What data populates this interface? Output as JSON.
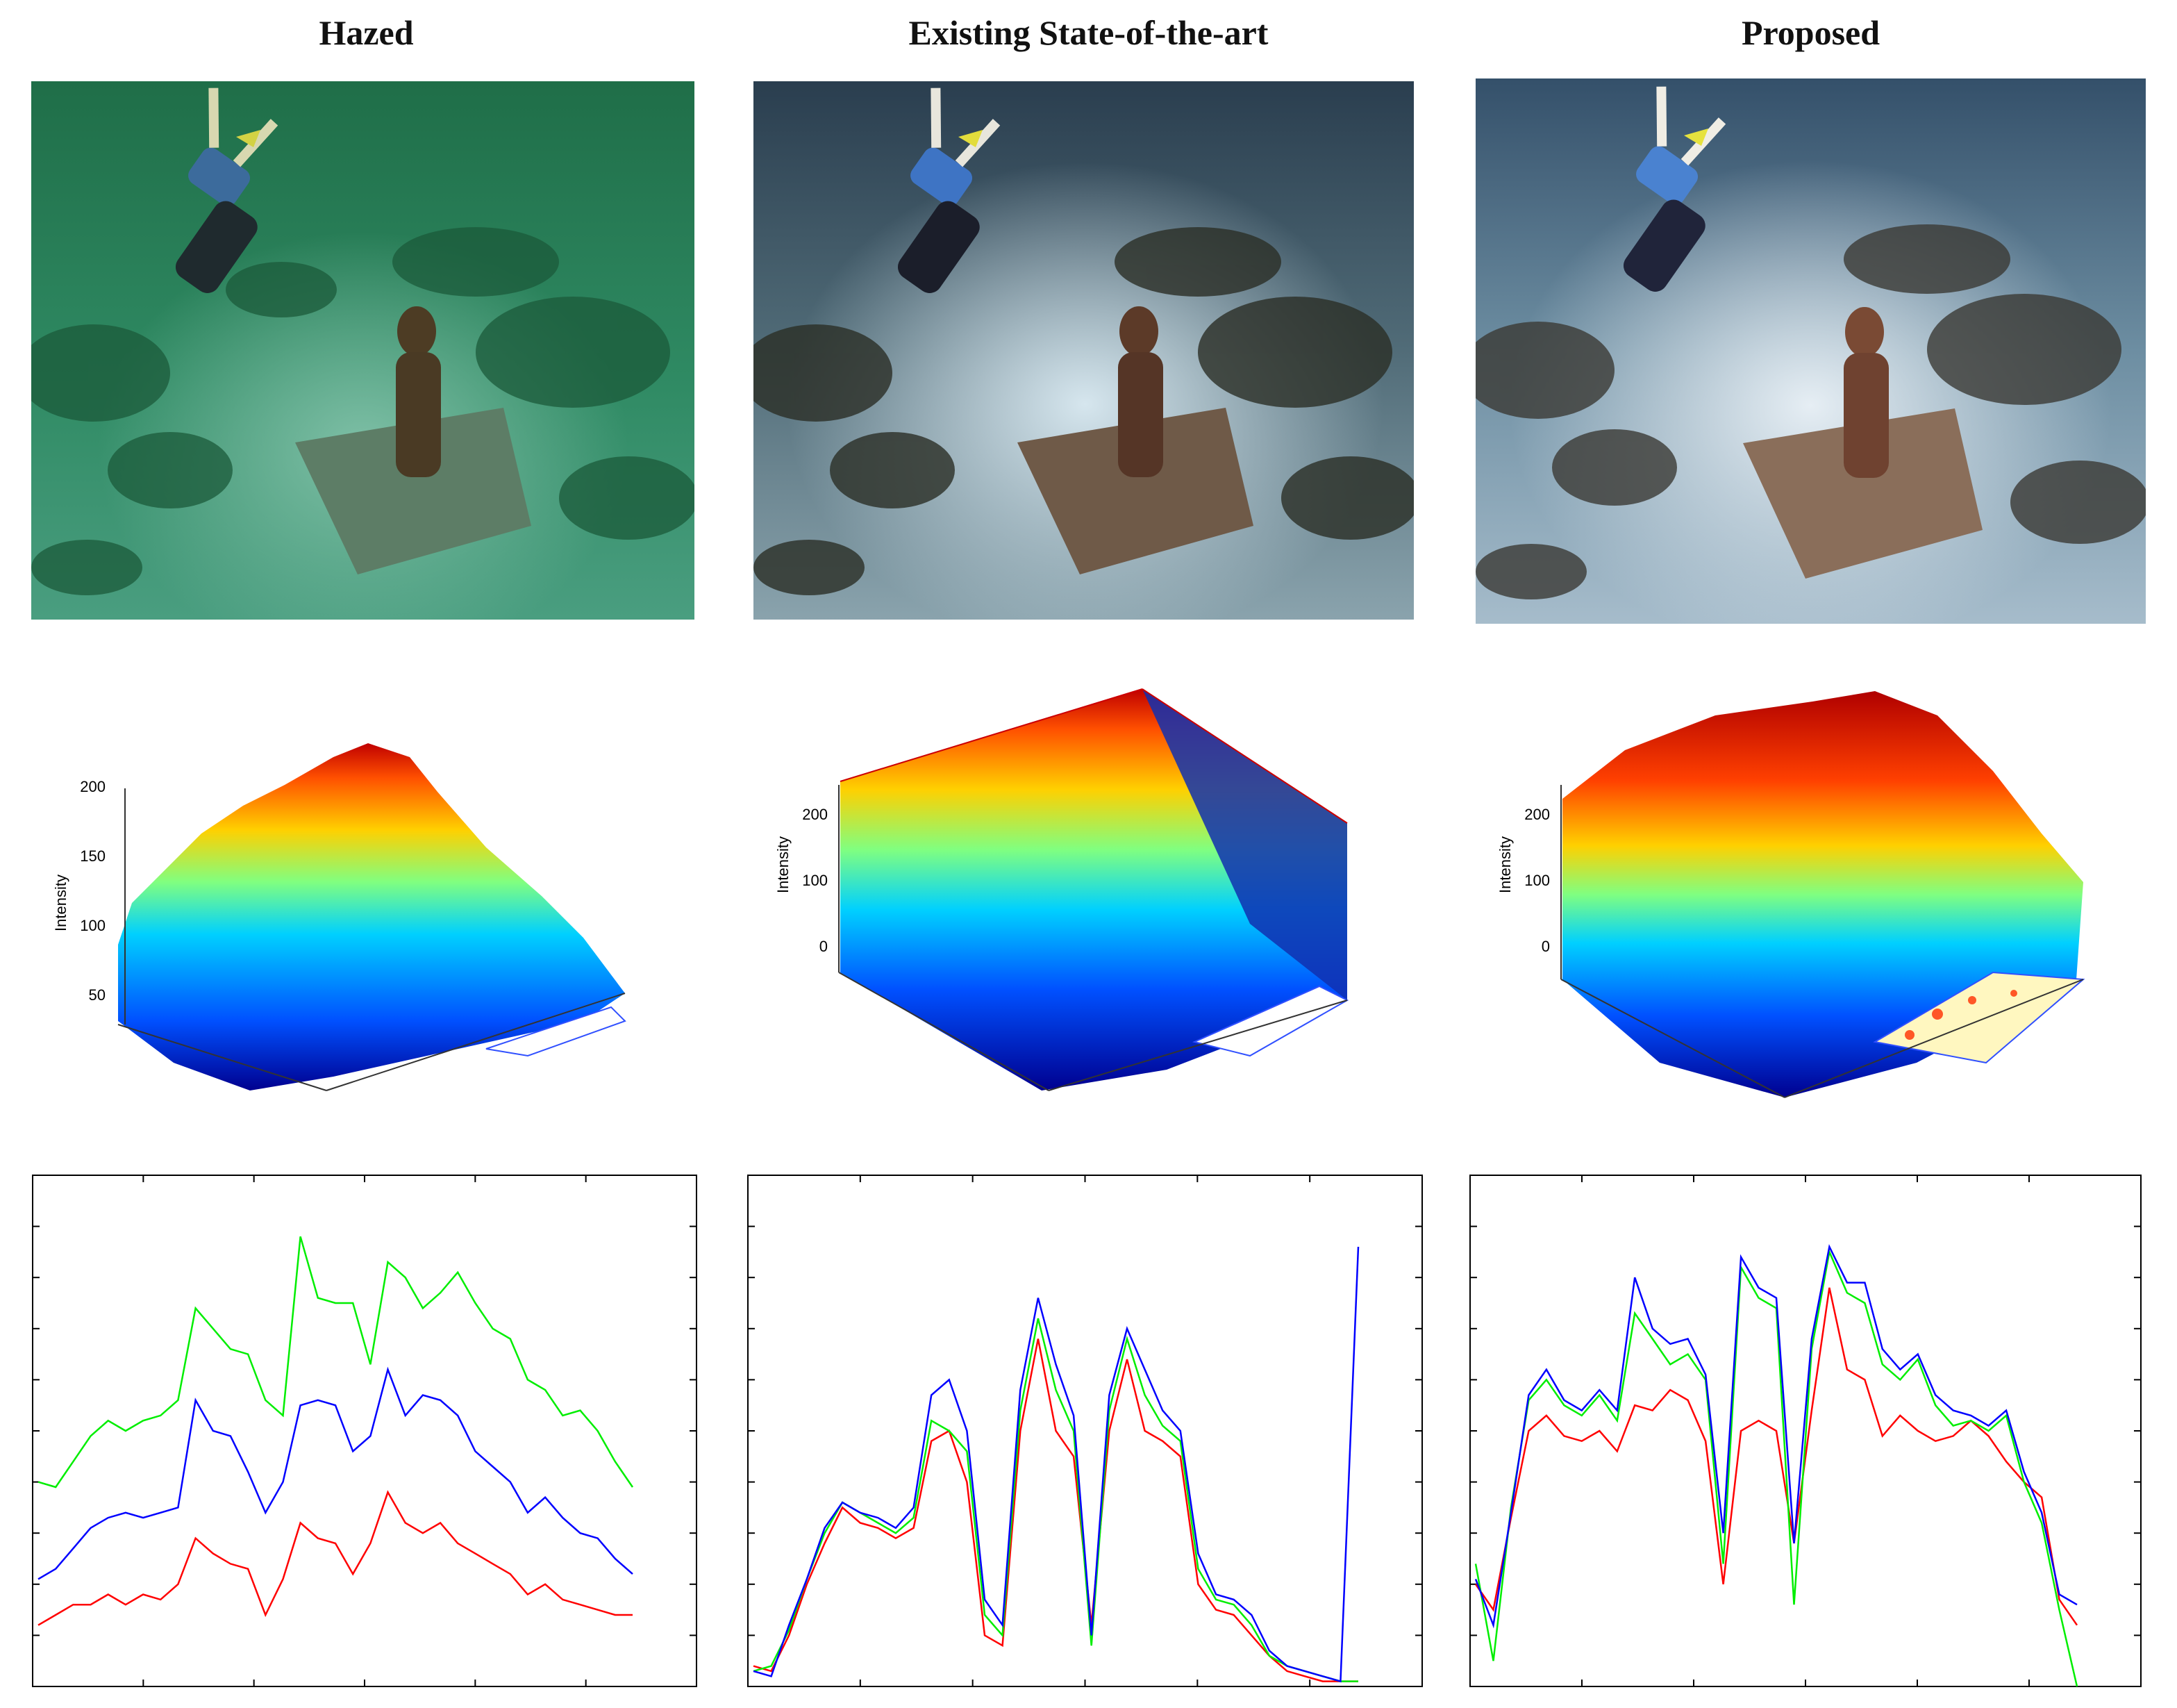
{
  "columns": [
    {
      "title": "Hazed"
    },
    {
      "title": "Existing State-of-the-art"
    },
    {
      "title": "Proposed"
    }
  ],
  "colors": {
    "red": "#ff0000",
    "green": "#00ee00",
    "blue": "#0000ff"
  },
  "chart_data": [
    {
      "type": "surface",
      "zlabel": "Intensity",
      "ticks": [
        "200",
        "150",
        "100",
        "50"
      ],
      "zlim": [
        40,
        230
      ]
    },
    {
      "type": "surface",
      "zlabel": "Intensity",
      "ticks": [
        "200",
        "100",
        "0"
      ],
      "zlim": [
        0,
        255
      ]
    },
    {
      "type": "surface",
      "zlabel": "Intensity",
      "ticks": [
        "200",
        "100",
        "0"
      ],
      "zlim": [
        0,
        255
      ]
    },
    {
      "type": "line",
      "ylim": [
        0,
        10
      ],
      "series": [
        {
          "color": "green",
          "values": [
            4.0,
            3.9,
            4.4,
            4.9,
            5.2,
            5.0,
            5.2,
            5.3,
            5.6,
            7.4,
            7.0,
            6.6,
            6.5,
            5.6,
            5.3,
            8.8,
            7.6,
            7.5,
            7.5,
            6.3,
            8.3,
            8.0,
            7.4,
            7.7,
            8.1,
            7.5,
            7.0,
            6.8,
            6.0,
            5.8,
            5.3,
            5.4,
            5.0,
            4.4,
            3.9
          ]
        },
        {
          "color": "blue",
          "values": [
            2.1,
            2.3,
            2.7,
            3.1,
            3.3,
            3.4,
            3.3,
            3.4,
            3.5,
            5.6,
            5.0,
            4.9,
            4.2,
            3.4,
            4.0,
            5.5,
            5.6,
            5.5,
            4.6,
            4.9,
            6.2,
            5.3,
            5.7,
            5.6,
            5.3,
            4.6,
            4.3,
            4.0,
            3.4,
            3.7,
            3.3,
            3.0,
            2.9,
            2.5,
            2.2
          ]
        },
        {
          "color": "red",
          "values": [
            1.2,
            1.4,
            1.6,
            1.6,
            1.8,
            1.6,
            1.8,
            1.7,
            2.0,
            2.9,
            2.6,
            2.4,
            2.3,
            1.4,
            2.1,
            3.2,
            2.9,
            2.8,
            2.2,
            2.8,
            3.8,
            3.2,
            3.0,
            3.2,
            2.8,
            2.6,
            2.4,
            2.2,
            1.8,
            2.0,
            1.7,
            1.6,
            1.5,
            1.4,
            1.4
          ]
        }
      ]
    },
    {
      "type": "line",
      "ylim": [
        0,
        10
      ],
      "series": [
        {
          "color": "red",
          "values": [
            0.4,
            0.3,
            1.0,
            2.0,
            2.8,
            3.5,
            3.2,
            3.1,
            2.9,
            3.1,
            4.8,
            5.0,
            4.0,
            1.0,
            0.8,
            5.0,
            6.8,
            5.0,
            4.5,
            1.2,
            5.0,
            6.4,
            5.0,
            4.8,
            4.5,
            2.0,
            1.5,
            1.4,
            1.0,
            0.6,
            0.3,
            0.2,
            0.1,
            0.1,
            0.1
          ]
        },
        {
          "color": "green",
          "values": [
            0.3,
            0.4,
            1.1,
            2.1,
            3.0,
            3.6,
            3.4,
            3.2,
            3.0,
            3.3,
            5.2,
            5.0,
            4.6,
            1.4,
            1.0,
            5.4,
            7.2,
            5.8,
            5.0,
            0.8,
            5.4,
            6.8,
            5.7,
            5.1,
            4.8,
            2.3,
            1.7,
            1.6,
            1.2,
            0.6,
            0.4,
            0.3,
            0.2,
            0.1,
            0.1
          ]
        },
        {
          "color": "blue",
          "values": [
            0.3,
            0.2,
            1.2,
            2.1,
            3.1,
            3.6,
            3.4,
            3.3,
            3.1,
            3.5,
            5.7,
            6.0,
            5.0,
            1.7,
            1.2,
            5.8,
            7.6,
            6.3,
            5.3,
            1.0,
            5.7,
            7.0,
            6.2,
            5.4,
            5.0,
            2.6,
            1.8,
            1.7,
            1.4,
            0.7,
            0.4,
            0.3,
            0.2,
            0.1,
            8.6
          ]
        }
      ]
    },
    {
      "type": "line",
      "ylim": [
        0,
        10
      ],
      "series": [
        {
          "color": "red",
          "values": [
            2.0,
            1.5,
            3.3,
            5.0,
            5.3,
            4.9,
            4.8,
            5.0,
            4.6,
            5.5,
            5.4,
            5.8,
            5.6,
            4.8,
            2.0,
            5.0,
            5.2,
            5.0,
            2.8,
            5.4,
            7.8,
            6.2,
            6.0,
            4.9,
            5.3,
            5.0,
            4.8,
            4.9,
            5.2,
            4.9,
            4.4,
            4.0,
            3.7,
            1.7,
            1.2
          ]
        },
        {
          "color": "green",
          "values": [
            2.4,
            0.5,
            3.5,
            5.6,
            6.0,
            5.5,
            5.3,
            5.7,
            5.2,
            7.3,
            6.8,
            6.3,
            6.5,
            6.0,
            2.4,
            8.2,
            7.6,
            7.4,
            1.6,
            6.6,
            8.5,
            7.7,
            7.5,
            6.3,
            6.0,
            6.4,
            5.5,
            5.1,
            5.2,
            5.0,
            5.3,
            4.0,
            3.2,
            1.5,
            0.0
          ]
        },
        {
          "color": "blue",
          "values": [
            2.1,
            1.2,
            3.4,
            5.7,
            6.2,
            5.6,
            5.4,
            5.8,
            5.4,
            8.0,
            7.0,
            6.7,
            6.8,
            6.1,
            3.0,
            8.4,
            7.8,
            7.6,
            2.8,
            6.8,
            8.6,
            7.9,
            7.9,
            6.6,
            6.2,
            6.5,
            5.7,
            5.4,
            5.3,
            5.1,
            5.4,
            4.2,
            3.4,
            1.8,
            1.6
          ]
        }
      ]
    }
  ]
}
